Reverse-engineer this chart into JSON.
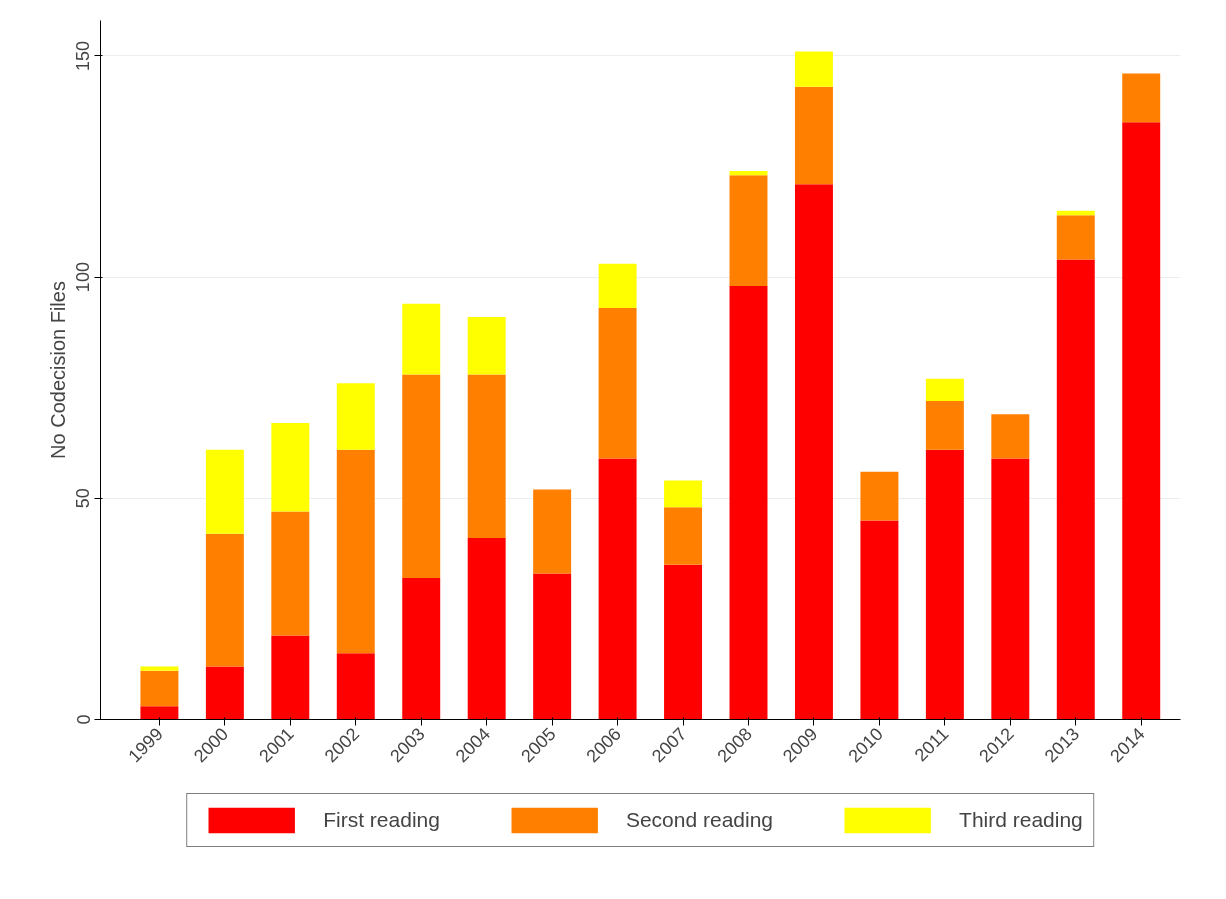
{
  "chart_data": {
    "type": "bar",
    "stacked": true,
    "ylabel": "No Codecision Files",
    "categories": [
      "1999",
      "2000",
      "2001",
      "2002",
      "2003",
      "2004",
      "2005",
      "2006",
      "2007",
      "2008",
      "2009",
      "2010",
      "2011",
      "2012",
      "2013",
      "2014"
    ],
    "series": [
      {
        "name": "First reading",
        "color": "#ff0000",
        "values": [
          3,
          12,
          19,
          15,
          32,
          41,
          33,
          59,
          35,
          98,
          121,
          45,
          61,
          59,
          104,
          135
        ]
      },
      {
        "name": "Second reading",
        "color": "#ff8000",
        "values": [
          8,
          30,
          28,
          46,
          46,
          37,
          19,
          34,
          13,
          25,
          22,
          11,
          11,
          10,
          10,
          11
        ]
      },
      {
        "name": "Third reading",
        "color": "#ffff00",
        "values": [
          1,
          19,
          20,
          15,
          16,
          13,
          0,
          10,
          6,
          1,
          8,
          0,
          5,
          0,
          1,
          0
        ]
      }
    ],
    "ylim": [
      0,
      158
    ],
    "yticks": [
      0,
      50,
      100,
      150
    ],
    "grid": "y",
    "legend": "bottom"
  }
}
